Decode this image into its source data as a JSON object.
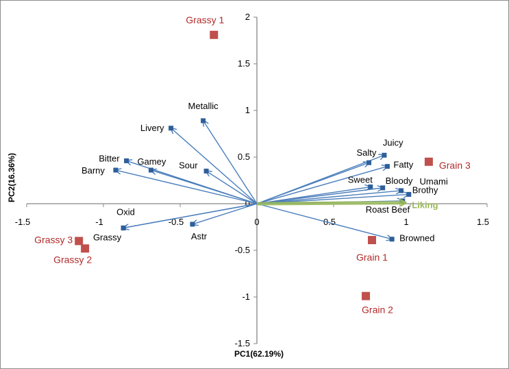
{
  "chart_data": {
    "type": "scatter",
    "title": "",
    "xlabel": "PC1(62.19%)",
    "ylabel": "PC2(16.36%)",
    "xlim": [
      -1.5,
      1.5
    ],
    "ylim": [
      -1.5,
      2
    ],
    "x_ticks": [
      -1.5,
      -1,
      -0.5,
      0,
      0.5,
      1,
      1.5
    ],
    "y_ticks": [
      -1.5,
      -1,
      -0.5,
      0,
      0.5,
      1,
      1.5,
      2
    ],
    "x_tick_labels": [
      "-1.5",
      "-1",
      "-0.5",
      "0",
      "0.5",
      "1",
      "1.5"
    ],
    "y_tick_labels": [
      "-1.5",
      "-1",
      "-0.5",
      "0",
      "0.5",
      "1",
      "1.5",
      "2"
    ],
    "grid": false,
    "colors": {
      "vector": "#4a7ebb",
      "vector_marker": "#2e5f9a",
      "sample": "#c0504d",
      "sample_label": "#b22a2a",
      "liking": "#9bbb59",
      "axis": "#868686"
    },
    "variables": [
      {
        "name": "Metallic",
        "x": -0.35,
        "y": 0.89
      },
      {
        "name": "Livery",
        "x": -0.56,
        "y": 0.81
      },
      {
        "name": "Bitter",
        "x": -0.85,
        "y": 0.46
      },
      {
        "name": "Gamey",
        "x": -0.69,
        "y": 0.36
      },
      {
        "name": "Barny",
        "x": -0.92,
        "y": 0.36
      },
      {
        "name": "Sour",
        "x": -0.33,
        "y": 0.35
      },
      {
        "name": "Oxid",
        "x": -0.87,
        "y": -0.26
      },
      {
        "name": "Grassy",
        "x": -0.87,
        "y": -0.26
      },
      {
        "name": "Astr",
        "x": -0.42,
        "y": -0.22
      },
      {
        "name": "Juicy",
        "x": 0.83,
        "y": 0.52
      },
      {
        "name": "Salty",
        "x": 0.73,
        "y": 0.44
      },
      {
        "name": "Fatty",
        "x": 0.85,
        "y": 0.4
      },
      {
        "name": "Sweet",
        "x": 0.74,
        "y": 0.18
      },
      {
        "name": "Bloody",
        "x": 0.82,
        "y": 0.17
      },
      {
        "name": "Umami",
        "x": 0.94,
        "y": 0.14
      },
      {
        "name": "Brothy",
        "x": 0.99,
        "y": 0.1
      },
      {
        "name": "Roast Beef",
        "x": 0.95,
        "y": 0.03
      },
      {
        "name": "Browned",
        "x": 0.88,
        "y": -0.38
      }
    ],
    "liking": {
      "name": "Liking",
      "x": 0.97,
      "y": 0.01
    },
    "samples": [
      {
        "name": "Grassy 1",
        "x": -0.28,
        "y": 1.81
      },
      {
        "name": "Grassy 3",
        "x": -1.16,
        "y": -0.4
      },
      {
        "name": "Grassy 2",
        "x": -1.12,
        "y": -0.48
      },
      {
        "name": "Grain 3",
        "x": 1.12,
        "y": 0.45
      },
      {
        "name": "Grain 1",
        "x": 0.75,
        "y": -0.39
      },
      {
        "name": "Grain 2",
        "x": 0.71,
        "y": -0.99
      }
    ]
  }
}
